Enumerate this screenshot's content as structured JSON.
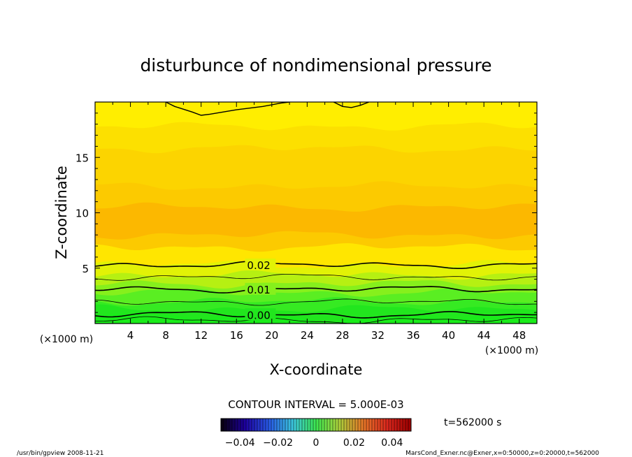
{
  "chart_data": {
    "type": "contour",
    "title": "disturbunce of nondimensional pressure",
    "xlabel": "X-coordinate",
    "ylabel": "Z-coordinate",
    "x_unit_left": "(×1000 m)",
    "x_unit_right": "(×1000 m)",
    "xlim": [
      0,
      50
    ],
    "ylim": [
      0,
      20
    ],
    "xticks": [
      4,
      8,
      12,
      16,
      20,
      24,
      28,
      32,
      36,
      40,
      44,
      48
    ],
    "yticks": [
      5,
      10,
      15
    ],
    "contour_interval_text": "CONTOUR INTERVAL = 5.000E-03",
    "time_label": "t=562000 s",
    "colorbar_ticks": [
      "−0.04",
      "−0.02",
      "0",
      "0.02",
      "0.04"
    ],
    "colorbar_values": [
      -0.04,
      -0.02,
      0,
      0.02,
      0.04
    ],
    "colorbar_range": [
      -0.05,
      0.05
    ],
    "contour_labels": [
      {
        "text": "0.02",
        "level": 0.02,
        "x": 17.2,
        "z": 5.3
      },
      {
        "text": "0.01",
        "level": 0.01,
        "x": 17.2,
        "z": 3.1
      },
      {
        "text": "0.00",
        "level": 0.0,
        "x": 17.2,
        "z": 0.8
      }
    ],
    "bands": [
      {
        "z0": 0.0,
        "z1": 0.6,
        "color": "#1aec1a"
      },
      {
        "z0": 0.6,
        "z1": 1.3,
        "color": "#22e61e"
      },
      {
        "z0": 1.3,
        "z1": 2.0,
        "color": "#36ea22"
      },
      {
        "z0": 2.0,
        "z1": 2.8,
        "color": "#5aee22"
      },
      {
        "z0": 2.8,
        "z1": 3.6,
        "color": "#86f01c"
      },
      {
        "z0": 3.6,
        "z1": 4.4,
        "color": "#b6f012"
      },
      {
        "z0": 4.4,
        "z1": 5.3,
        "color": "#e2f206"
      },
      {
        "z0": 5.3,
        "z1": 6.9,
        "color": "#ffe600"
      },
      {
        "z0": 6.9,
        "z1": 8.0,
        "color": "#fcca00"
      },
      {
        "z0": 8.0,
        "z1": 10.5,
        "color": "#fcb800"
      },
      {
        "z0": 10.5,
        "z1": 12.4,
        "color": "#fcca00"
      },
      {
        "z0": 12.4,
        "z1": 15.8,
        "color": "#fcd400"
      },
      {
        "z0": 15.8,
        "z1": 17.8,
        "color": "#fce000"
      },
      {
        "z0": 17.8,
        "z1": 20.0,
        "color": "#ffee00"
      }
    ],
    "footer_left": "/usr/bin/gpview   2008-11-21",
    "footer_right": "MarsCond_Exner.nc@Exner,x=0:50000,z=0:20000,t=562000"
  }
}
